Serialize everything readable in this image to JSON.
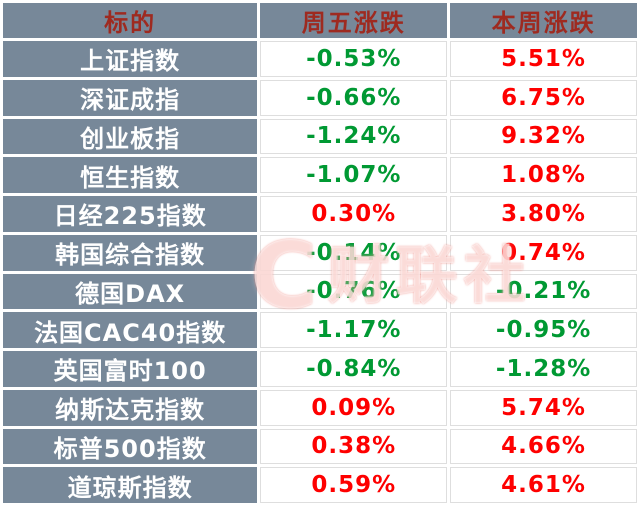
{
  "table": {
    "headers": [
      "标的",
      "周五涨跌",
      "本周涨跌"
    ],
    "rows": [
      {
        "name": "上证指数",
        "friday": "-0.53%",
        "friday_dir": "down",
        "week": "5.51%",
        "week_dir": "up"
      },
      {
        "name": "深证成指",
        "friday": "-0.66%",
        "friday_dir": "down",
        "week": "6.75%",
        "week_dir": "up"
      },
      {
        "name": "创业板指",
        "friday": "-1.24%",
        "friday_dir": "down",
        "week": "9.32%",
        "week_dir": "up"
      },
      {
        "name": "恒生指数",
        "friday": "-1.07%",
        "friday_dir": "down",
        "week": "1.08%",
        "week_dir": "up"
      },
      {
        "name": "日经225指数",
        "friday": "0.30%",
        "friday_dir": "up",
        "week": "3.80%",
        "week_dir": "up"
      },
      {
        "name": "韩国综合指数",
        "friday": "-0.14%",
        "friday_dir": "down",
        "week": "0.74%",
        "week_dir": "up"
      },
      {
        "name": "德国DAX",
        "friday": "-0.76%",
        "friday_dir": "down",
        "week": "-0.21%",
        "week_dir": "down"
      },
      {
        "name": "法国CAC40指数",
        "friday": "-1.17%",
        "friday_dir": "down",
        "week": "-0.95%",
        "week_dir": "down"
      },
      {
        "name": "英国富时100",
        "friday": "-0.84%",
        "friday_dir": "down",
        "week": "-1.28%",
        "week_dir": "down"
      },
      {
        "name": "纳斯达克指数",
        "friday": "0.09%",
        "friday_dir": "up",
        "week": "5.74%",
        "week_dir": "up"
      },
      {
        "name": "标普500指数",
        "friday": "0.38%",
        "friday_dir": "up",
        "week": "4.66%",
        "week_dir": "up"
      },
      {
        "name": "道琼斯指数",
        "friday": "0.59%",
        "friday_dir": "up",
        "week": "4.61%",
        "week_dir": "up"
      }
    ]
  },
  "watermark": {
    "logo": "C",
    "text": "财联社"
  },
  "colors": {
    "up": "#fe0000",
    "down": "#009933",
    "cell_bg": "#778899",
    "header_text": "#9e2a20"
  },
  "chart_data": {
    "type": "table",
    "columns": [
      "标的",
      "周五涨跌",
      "本周涨跌"
    ],
    "rows": [
      [
        "上证指数",
        "-0.53%",
        "5.51%"
      ],
      [
        "深证成指",
        "-0.66%",
        "6.75%"
      ],
      [
        "创业板指",
        "-1.24%",
        "9.32%"
      ],
      [
        "恒生指数",
        "-1.07%",
        "1.08%"
      ],
      [
        "日经225指数",
        "0.30%",
        "3.80%"
      ],
      [
        "韩国综合指数",
        "-0.14%",
        "0.74%"
      ],
      [
        "德国DAX",
        "-0.76%",
        "-0.21%"
      ],
      [
        "法国CAC40指数",
        "-1.17%",
        "-0.95%"
      ],
      [
        "英国富时100",
        "-0.84%",
        "-1.28%"
      ],
      [
        "纳斯达克指数",
        "0.09%",
        "5.74%"
      ],
      [
        "标普500指数",
        "0.38%",
        "4.66%"
      ],
      [
        "道琼斯指数",
        "0.59%",
        "4.61%"
      ]
    ],
    "notes": "red = gain, green = loss (Chinese market color convention)"
  }
}
